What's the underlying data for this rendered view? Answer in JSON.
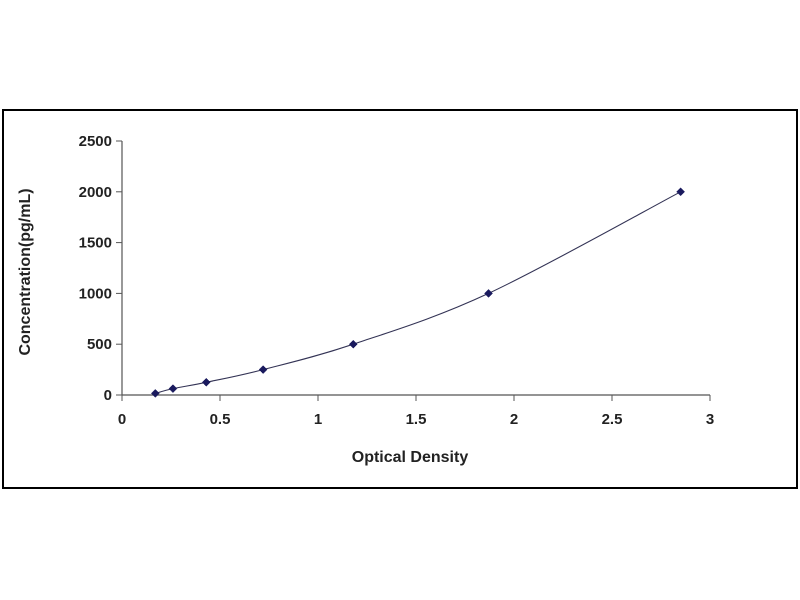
{
  "chart_data": {
    "type": "scatter",
    "title": "",
    "xlabel": "Optical Density",
    "ylabel": "Concentration(pg/mL)",
    "xlim": [
      0,
      3
    ],
    "ylim": [
      0,
      2500
    ],
    "x_ticks": [
      "0",
      "0.5",
      "1",
      "1.5",
      "2",
      "2.5",
      "3"
    ],
    "y_ticks": [
      "0",
      "500",
      "1000",
      "1500",
      "2000",
      "2500"
    ],
    "grid": false,
    "legend": "none",
    "series": [
      {
        "points": [
          {
            "x": 0.17,
            "y": 15.6
          },
          {
            "x": 0.26,
            "y": 62.5
          },
          {
            "x": 0.43,
            "y": 125
          },
          {
            "x": 0.72,
            "y": 250
          },
          {
            "x": 1.18,
            "y": 500
          },
          {
            "x": 1.87,
            "y": 1000
          },
          {
            "x": 2.85,
            "y": 2000
          }
        ],
        "color": "#1a1a5e",
        "marker": "diamond",
        "fit_line": "smooth"
      }
    ],
    "colors": {
      "axis": "#555555",
      "curve": "#333355",
      "marker": "#1a1a5e"
    }
  }
}
